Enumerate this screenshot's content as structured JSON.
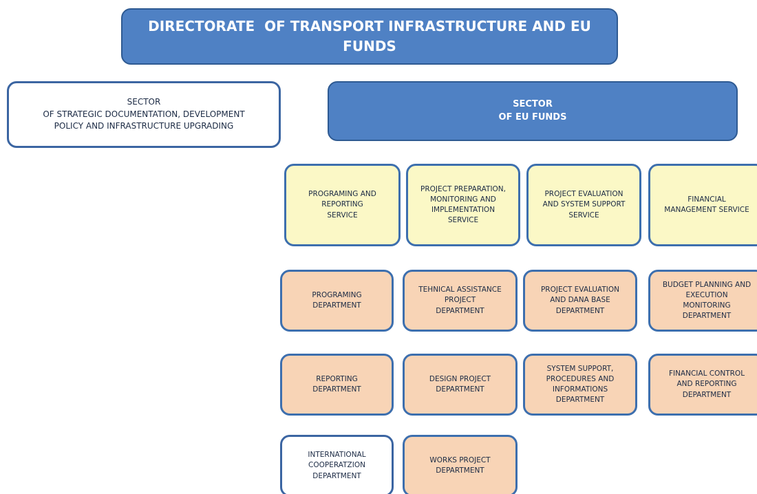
{
  "nodes": [
    {
      "lines": [
        "DIRECTORATE  OF TRANSPORT INFRASTRUCTURE AND EU",
        "FUNDS"
      ]
    },
    {
      "lines": [
        "SECTOR",
        "OF STRATEGIC DOCUMENTATION, DEVELOPMENT",
        "POLICY AND INFRASTRUCTURE UPGRADING"
      ]
    },
    {
      "lines": [
        "SECTOR",
        "OF EU FUNDS"
      ]
    },
    {
      "lines": [
        "PROGRAMING AND",
        "REPORTING",
        "SERVICE"
      ]
    },
    {
      "lines": [
        "PROJECT PREPARATION,",
        "MONITORING AND",
        "IMPLEMENTATION",
        "SERVICE"
      ]
    },
    {
      "lines": [
        "PROJECT EVALUATION",
        "AND SYSTEM SUPPORT",
        "SERVICE"
      ]
    },
    {
      "lines": [
        "FINANCIAL",
        "MANAGEMENT SERVICE"
      ]
    },
    {
      "lines": [
        "PROGRAMING",
        "DEPARTMENT"
      ]
    },
    {
      "lines": [
        "TEHNICAL ASSISTANCE",
        "PROJECT",
        "DEPARTMENT"
      ]
    },
    {
      "lines": [
        "PROJECT EVALUATION",
        "AND DANA BASE",
        "DEPARTMENT"
      ]
    },
    {
      "lines": [
        "BUDGET PLANNING AND",
        "EXECUTION",
        "MONITORING",
        "DEPARTMENT"
      ]
    },
    {
      "lines": [
        "REPORTING",
        "DEPARTMENT"
      ]
    },
    {
      "lines": [
        "DESIGN PROJECT",
        "DEPARTMENT"
      ]
    },
    {
      "lines": [
        "SYSTEM SUPPORT,",
        "PROCEDURES AND",
        "INFORMATIONS",
        "DEPARTMENT"
      ]
    },
    {
      "lines": [
        "FINANCIAL CONTROL",
        "AND REPORTING",
        "DEPARTMENT"
      ]
    },
    {
      "lines": [
        "INTERNATIONAL",
        "COOPERATZION",
        "DEPARTMENT"
      ]
    },
    {
      "lines": [
        "WORKS PROJECT",
        "DEPARTMENT"
      ]
    }
  ]
}
